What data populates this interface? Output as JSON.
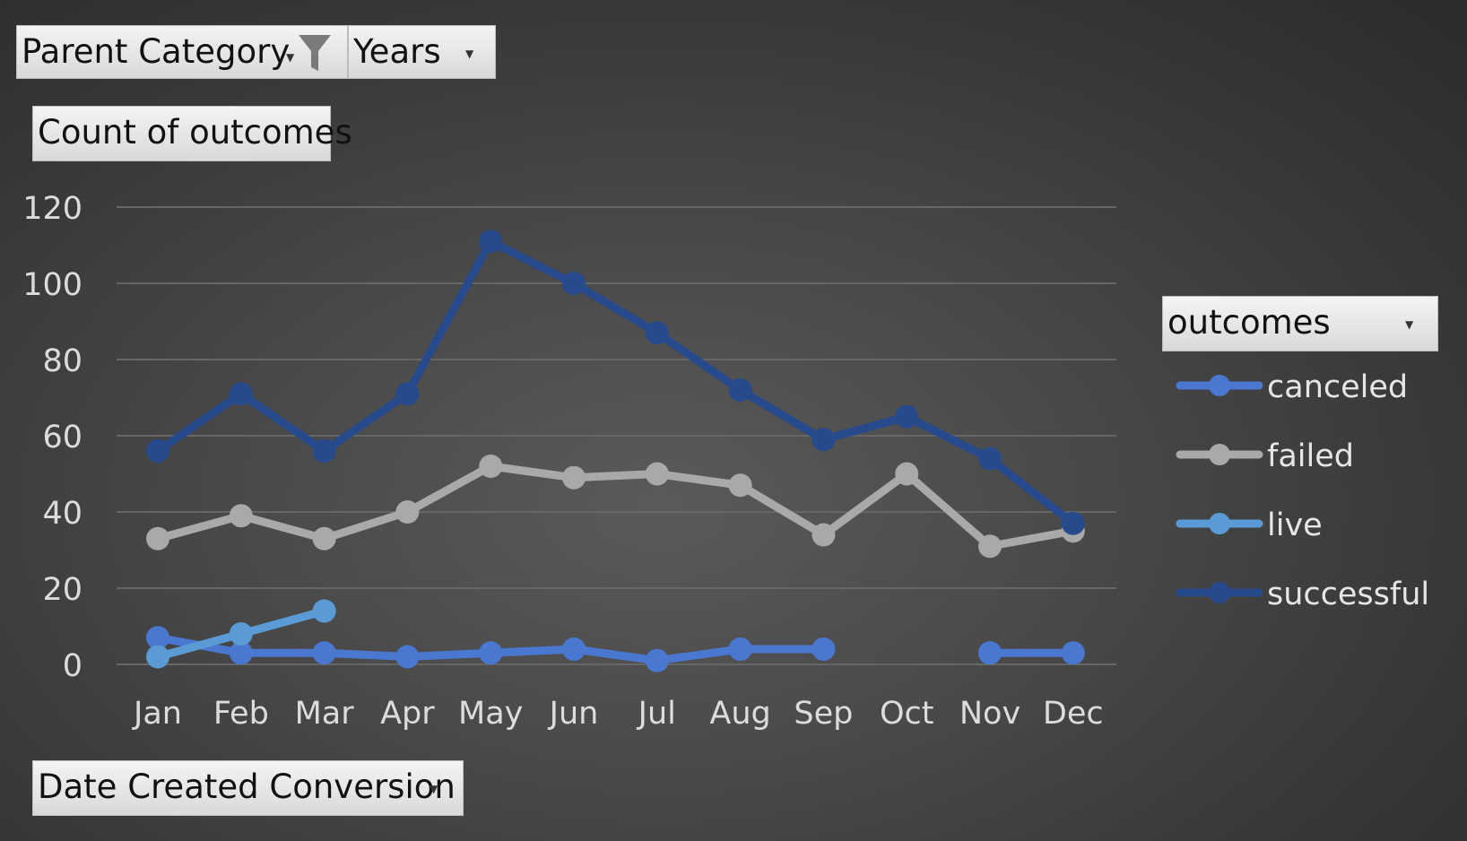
{
  "filters": {
    "parent_category": "Parent Category",
    "years": "Years",
    "values_field": "Count of outcomes",
    "axis_field": "Date Created Conversion",
    "legend_field": "outcomes"
  },
  "colors": {
    "canceled": "#4a78d0",
    "failed": "#a9a9a9",
    "live": "#5b9bd5",
    "successful": "#264a8c",
    "gridline": "#666666",
    "tick_text": "#dcdcdc"
  },
  "icons": {
    "filter": "funnel-icon",
    "dropdown": "dropdown-arrow-icon"
  },
  "chart_data": {
    "type": "line",
    "categories": [
      "Jan",
      "Feb",
      "Mar",
      "Apr",
      "May",
      "Jun",
      "Jul",
      "Aug",
      "Sep",
      "Oct",
      "Nov",
      "Dec"
    ],
    "ylim": [
      0,
      120
    ],
    "yticks": [
      0,
      20,
      40,
      60,
      80,
      100,
      120
    ],
    "grid": true,
    "legend_position": "right",
    "series": [
      {
        "name": "canceled",
        "values": [
          7,
          3,
          3,
          2,
          3,
          4,
          1,
          4,
          4,
          null,
          3,
          3
        ]
      },
      {
        "name": "failed",
        "values": [
          33,
          39,
          33,
          40,
          52,
          49,
          50,
          47,
          34,
          50,
          31,
          35
        ]
      },
      {
        "name": "live",
        "values": [
          2,
          8,
          14,
          null,
          null,
          null,
          null,
          null,
          null,
          null,
          null,
          null
        ]
      },
      {
        "name": "successful",
        "values": [
          56,
          71,
          56,
          71,
          111,
          100,
          87,
          72,
          59,
          65,
          54,
          37
        ]
      }
    ]
  }
}
